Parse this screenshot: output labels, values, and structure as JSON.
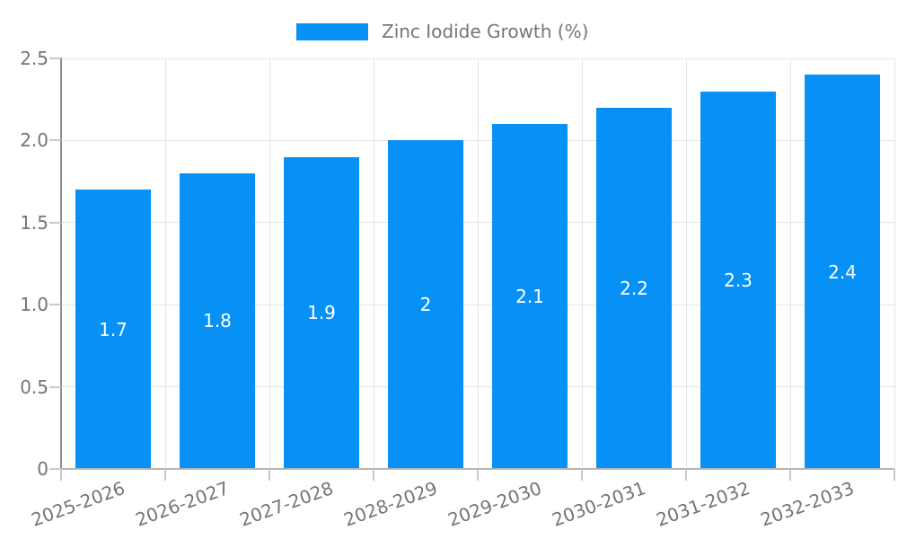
{
  "chart_data": {
    "type": "bar",
    "title": "",
    "legend": {
      "label": "Zinc Iodide Growth (%)",
      "position": "top-center"
    },
    "categories": [
      "2025-2026",
      "2026-2027",
      "2027-2028",
      "2028-2029",
      "2029-2030",
      "2030-2031",
      "2031-2032",
      "2032-2033"
    ],
    "series": [
      {
        "name": "Zinc Iodide Growth (%)",
        "values": [
          1.7,
          1.8,
          1.9,
          2.0,
          2.1,
          2.2,
          2.3,
          2.4
        ],
        "labels": [
          "1.7",
          "1.8",
          "1.9",
          "2",
          "2.1",
          "2.2",
          "2.3",
          "2.4"
        ],
        "color": "#0790f5"
      }
    ],
    "xlabel": "",
    "ylabel": "",
    "ylim": [
      0,
      2.5
    ],
    "yticks": [
      "0",
      "0.5",
      "1.0",
      "1.5",
      "2.0",
      "2.5"
    ],
    "grid": true,
    "xtick_rotation_deg": -20,
    "style": {
      "background": "#ffffff",
      "bar_label_color": "#ffffff",
      "axis_text_color": "#757575",
      "grid_color": "#e5e5e5",
      "left_spine_color": "#8c8c8c",
      "bottom_spine_color": "#b5b5b5",
      "tick_color": "#c9c9c9"
    }
  }
}
